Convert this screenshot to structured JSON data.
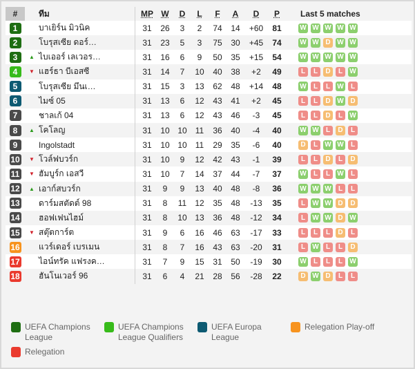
{
  "header": {
    "rank": "#",
    "team": "ทีม",
    "mp": "MP",
    "w": "W",
    "d": "D",
    "l": "L",
    "f": "F",
    "a": "A",
    "gd": "D",
    "p": "P",
    "last5": "Last 5 matches"
  },
  "colors": {
    "cl": "#1e6e12",
    "clq": "#37bb1a",
    "el": "#0d5a72",
    "neutral": "#4a4a4a",
    "playoff": "#f7931e",
    "relegation": "#ea3a2e",
    "W": "#8ccf6e",
    "D": "#f6bd72",
    "L": "#ef8d88"
  },
  "rows": [
    {
      "rank": "1",
      "zone": "cl",
      "move": "",
      "team": "บาเยิร์น มิวนิค",
      "mp": "31",
      "w": "26",
      "d": "3",
      "l": "2",
      "f": "74",
      "a": "14",
      "gd": "+60",
      "p": "81",
      "form": [
        "W",
        "W",
        "W",
        "W",
        "W"
      ]
    },
    {
      "rank": "2",
      "zone": "cl",
      "move": "",
      "team": "โบรุสเซีย ดอร์…",
      "mp": "31",
      "w": "23",
      "d": "5",
      "l": "3",
      "f": "75",
      "a": "30",
      "gd": "+45",
      "p": "74",
      "form": [
        "W",
        "W",
        "D",
        "W",
        "W"
      ]
    },
    {
      "rank": "3",
      "zone": "cl",
      "move": "up",
      "team": "ไบเออร์ เลเวอร…",
      "mp": "31",
      "w": "16",
      "d": "6",
      "l": "9",
      "f": "50",
      "a": "35",
      "gd": "+15",
      "p": "54",
      "form": [
        "W",
        "W",
        "W",
        "W",
        "W"
      ]
    },
    {
      "rank": "4",
      "zone": "clq",
      "move": "down",
      "team": "แฮร์ธา บีเอสซี",
      "mp": "31",
      "w": "14",
      "d": "7",
      "l": "10",
      "f": "40",
      "a": "38",
      "gd": "+2",
      "p": "49",
      "form": [
        "L",
        "L",
        "D",
        "L",
        "W"
      ]
    },
    {
      "rank": "5",
      "zone": "el",
      "move": "",
      "team": "โบรุสเซีย มึนเ…",
      "mp": "31",
      "w": "15",
      "d": "3",
      "l": "13",
      "f": "62",
      "a": "48",
      "gd": "+14",
      "p": "48",
      "form": [
        "W",
        "L",
        "L",
        "W",
        "L"
      ]
    },
    {
      "rank": "6",
      "zone": "el",
      "move": "",
      "team": "ไมซ์ 05",
      "mp": "31",
      "w": "13",
      "d": "6",
      "l": "12",
      "f": "43",
      "a": "41",
      "gd": "+2",
      "p": "45",
      "form": [
        "L",
        "L",
        "D",
        "W",
        "D"
      ]
    },
    {
      "rank": "7",
      "zone": "neutral",
      "move": "",
      "team": "ชาลเก้ 04",
      "mp": "31",
      "w": "13",
      "d": "6",
      "l": "12",
      "f": "43",
      "a": "46",
      "gd": "-3",
      "p": "45",
      "form": [
        "L",
        "L",
        "D",
        "L",
        "W"
      ]
    },
    {
      "rank": "8",
      "zone": "neutral",
      "move": "up",
      "team": "โคโลญ",
      "mp": "31",
      "w": "10",
      "d": "10",
      "l": "11",
      "f": "36",
      "a": "40",
      "gd": "-4",
      "p": "40",
      "form": [
        "W",
        "W",
        "L",
        "D",
        "L"
      ]
    },
    {
      "rank": "9",
      "zone": "neutral",
      "move": "",
      "team": "Ingolstadt",
      "mp": "31",
      "w": "10",
      "d": "10",
      "l": "11",
      "f": "29",
      "a": "35",
      "gd": "-6",
      "p": "40",
      "form": [
        "D",
        "L",
        "W",
        "W",
        "L"
      ]
    },
    {
      "rank": "10",
      "zone": "neutral",
      "move": "down",
      "team": "โวล์ฟบวร์ก",
      "mp": "31",
      "w": "10",
      "d": "9",
      "l": "12",
      "f": "42",
      "a": "43",
      "gd": "-1",
      "p": "39",
      "form": [
        "L",
        "L",
        "D",
        "L",
        "D"
      ]
    },
    {
      "rank": "11",
      "zone": "neutral",
      "move": "down",
      "team": "ฮัมบูร์ก เอสวี",
      "mp": "31",
      "w": "10",
      "d": "7",
      "l": "14",
      "f": "37",
      "a": "44",
      "gd": "-7",
      "p": "37",
      "form": [
        "W",
        "L",
        "L",
        "W",
        "L"
      ]
    },
    {
      "rank": "12",
      "zone": "neutral",
      "move": "up",
      "team": "เอาก์สบวร์ก",
      "mp": "31",
      "w": "9",
      "d": "9",
      "l": "13",
      "f": "40",
      "a": "48",
      "gd": "-8",
      "p": "36",
      "form": [
        "W",
        "W",
        "W",
        "L",
        "L"
      ]
    },
    {
      "rank": "13",
      "zone": "neutral",
      "move": "",
      "team": "ดาร์มสตัดต์ 98",
      "mp": "31",
      "w": "8",
      "d": "11",
      "l": "12",
      "f": "35",
      "a": "48",
      "gd": "-13",
      "p": "35",
      "form": [
        "L",
        "W",
        "W",
        "D",
        "D"
      ]
    },
    {
      "rank": "14",
      "zone": "neutral",
      "move": "",
      "team": "ฮอฟเฟนไฮม์",
      "mp": "31",
      "w": "8",
      "d": "10",
      "l": "13",
      "f": "36",
      "a": "48",
      "gd": "-12",
      "p": "34",
      "form": [
        "L",
        "W",
        "W",
        "D",
        "W"
      ]
    },
    {
      "rank": "15",
      "zone": "neutral",
      "move": "down",
      "team": "สตุ๊ตการ์ต",
      "mp": "31",
      "w": "9",
      "d": "6",
      "l": "16",
      "f": "46",
      "a": "63",
      "gd": "-17",
      "p": "33",
      "form": [
        "L",
        "L",
        "L",
        "D",
        "L"
      ]
    },
    {
      "rank": "16",
      "zone": "playoff",
      "move": "",
      "team": "แวร์เดอร์ เบรเมน",
      "mp": "31",
      "w": "8",
      "d": "7",
      "l": "16",
      "f": "43",
      "a": "63",
      "gd": "-20",
      "p": "31",
      "form": [
        "L",
        "W",
        "L",
        "L",
        "D"
      ]
    },
    {
      "rank": "17",
      "zone": "relegation",
      "move": "",
      "team": "ไอน์ทรัค แฟรงค…",
      "mp": "31",
      "w": "7",
      "d": "9",
      "l": "15",
      "f": "31",
      "a": "50",
      "gd": "-19",
      "p": "30",
      "form": [
        "W",
        "L",
        "L",
        "L",
        "W"
      ]
    },
    {
      "rank": "18",
      "zone": "relegation",
      "move": "",
      "team": "ฮันโนเวอร์ 96",
      "mp": "31",
      "w": "6",
      "d": "4",
      "l": "21",
      "f": "28",
      "a": "56",
      "gd": "-28",
      "p": "22",
      "form": [
        "D",
        "W",
        "D",
        "L",
        "L"
      ]
    }
  ],
  "legend": [
    {
      "zone": "cl",
      "label": "UEFA Champions League"
    },
    {
      "zone": "clq",
      "label": "UEFA Champions League Qualifiers"
    },
    {
      "zone": "el",
      "label": "UEFA Europa League"
    },
    {
      "zone": "playoff",
      "label": "Relegation Play-off"
    },
    {
      "zone": "relegation",
      "label": "Relegation"
    }
  ]
}
